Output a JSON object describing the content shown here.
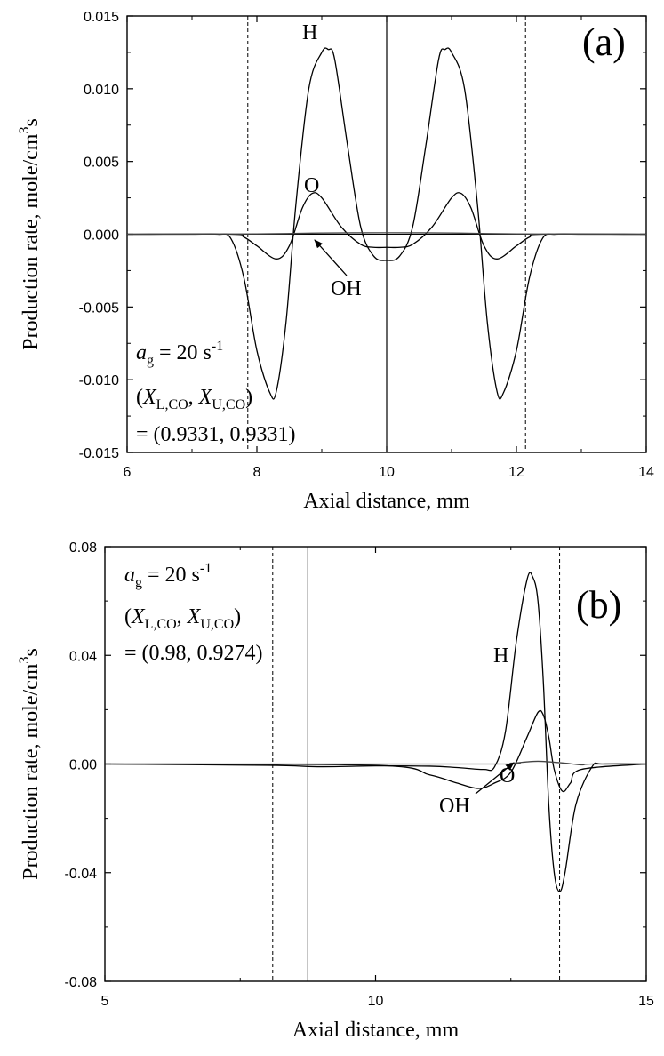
{
  "chart_data": [
    {
      "type": "line",
      "panel_label": "(a)",
      "xlabel": "Axial distance, mm",
      "ylabel": "Production rate, mole/cm",
      "ylabel_sup": "3",
      "ylabel_tail": "s",
      "xlim": [
        6,
        14
      ],
      "ylim": [
        -0.015,
        0.015
      ],
      "xticks": [
        "6",
        "8",
        "10",
        "12",
        "14"
      ],
      "yticks": [
        "-0.015",
        "-0.010",
        "-0.005",
        "0.000",
        "0.005",
        "0.010",
        "0.015"
      ],
      "annotation": {
        "line1_var": "a",
        "line1_sub": "g",
        "line1_rest": " = 20 s",
        "line1_sup": "-1",
        "line2_open": "(",
        "line2_var1": "X",
        "line2_sub1": "L,CO",
        "line2_sep": ", ",
        "line2_var2": "X",
        "line2_sub2": "U,CO",
        "line2_close": ")",
        "line3": "= (0.9331, 0.9331)"
      },
      "ref_lines": {
        "dashed_x": [
          7.86,
          12.14
        ],
        "solid_x": [
          10.0
        ]
      },
      "series": [
        {
          "name": "H",
          "x": [
            6,
            7,
            7.4,
            7.6,
            7.8,
            8.0,
            8.2,
            8.3,
            8.45,
            8.6,
            8.8,
            9.0,
            9.1,
            9.2,
            9.4,
            9.6,
            9.8,
            10.0,
            10.2,
            10.4,
            10.6,
            10.8,
            10.9,
            11.0,
            11.2,
            11.4,
            11.55,
            11.7,
            11.8,
            12.0,
            12.2,
            12.4,
            12.6,
            13,
            14
          ],
          "y": [
            0,
            0,
            0,
            -0.0003,
            -0.003,
            -0.008,
            -0.0109,
            -0.0108,
            -0.006,
            0.002,
            0.01,
            0.0125,
            0.0127,
            0.012,
            0.006,
            0.0005,
            -0.0015,
            -0.0018,
            -0.0015,
            0.0005,
            0.006,
            0.012,
            0.0127,
            0.0125,
            0.01,
            0.002,
            -0.006,
            -0.0108,
            -0.0109,
            -0.008,
            -0.003,
            -0.0003,
            0,
            0,
            0
          ]
        },
        {
          "name": "O",
          "x": [
            6,
            7.6,
            7.8,
            8.0,
            8.3,
            8.5,
            8.7,
            8.85,
            9.0,
            9.3,
            9.6,
            9.8,
            10.0,
            10.2,
            10.4,
            10.7,
            11.0,
            11.15,
            11.3,
            11.5,
            11.7,
            12.0,
            12.2,
            12.4,
            14
          ],
          "y": [
            0,
            0,
            -0.0002,
            -0.0008,
            -0.0017,
            -0.0008,
            0.0018,
            0.0028,
            0.0025,
            0.0005,
            -0.0007,
            -0.0009,
            -0.0009,
            -0.0009,
            -0.0007,
            0.0005,
            0.0025,
            0.0028,
            0.0018,
            -0.0008,
            -0.0017,
            -0.0008,
            -0.0002,
            0,
            0
          ]
        },
        {
          "name": "OH",
          "x": [
            6,
            8,
            9,
            10,
            11,
            12,
            14
          ],
          "y": [
            0,
            2e-05,
            8e-05,
            0.0001,
            8e-05,
            2e-05,
            0
          ]
        }
      ]
    },
    {
      "type": "line",
      "panel_label": "(b)",
      "xlabel": "Axial distance, mm",
      "ylabel": "Production rate, mole/cm",
      "ylabel_sup": "3",
      "ylabel_tail": "s",
      "xlim": [
        5,
        15
      ],
      "ylim": [
        -0.08,
        0.08
      ],
      "xticks": [
        "5",
        "10",
        "15"
      ],
      "yticks": [
        "-0.08",
        "-0.04",
        "0.00",
        "0.04",
        "0.08"
      ],
      "annotation": {
        "line1_var": "a",
        "line1_sub": "g",
        "line1_rest": " = 20 s",
        "line1_sup": "-1",
        "line2_open": "(",
        "line2_var1": "X",
        "line2_sub1": "L,CO",
        "line2_sep": ", ",
        "line2_var2": "X",
        "line2_sub2": "U,CO",
        "line2_close": ")",
        "line3": "= (0.98, 0.9274)"
      },
      "ref_lines": {
        "dashed_x": [
          8.1,
          13.4
        ],
        "solid_x": [
          8.75
        ]
      },
      "series": [
        {
          "name": "H",
          "x": [
            5,
            8.0,
            9.0,
            10.0,
            11.0,
            11.5,
            12.0,
            12.2,
            12.4,
            12.6,
            12.8,
            12.9,
            13.0,
            13.1,
            13.2,
            13.3,
            13.4,
            13.5,
            13.7,
            14.0,
            14.2,
            15
          ],
          "y": [
            0,
            -0.0005,
            -0.001,
            -0.0007,
            -0.0008,
            -0.0013,
            -0.002,
            -0.001,
            0.012,
            0.045,
            0.068,
            0.069,
            0.06,
            0.03,
            -0.015,
            -0.04,
            -0.047,
            -0.04,
            -0.015,
            -0.001,
            0,
            0
          ]
        },
        {
          "name": "O",
          "x": [
            5,
            10.0,
            11.0,
            11.5,
            11.9,
            12.2,
            12.5,
            12.8,
            13.0,
            13.1,
            13.2,
            13.3,
            13.45,
            13.6,
            13.8,
            15
          ],
          "y": [
            0,
            -0.0005,
            -0.004,
            -0.007,
            -0.009,
            -0.007,
            -0.003,
            0.01,
            0.019,
            0.018,
            0.01,
            -0.002,
            -0.01,
            -0.007,
            -0.002,
            0
          ]
        },
        {
          "name": "OH",
          "x": [
            5,
            12.0,
            12.5,
            12.8,
            13.0,
            13.2,
            13.5,
            13.8,
            14.0,
            15
          ],
          "y": [
            0,
            0,
            0.0003,
            0.0008,
            0.001,
            0.0008,
            0.0003,
            -0.0003,
            0,
            0
          ]
        }
      ]
    }
  ]
}
